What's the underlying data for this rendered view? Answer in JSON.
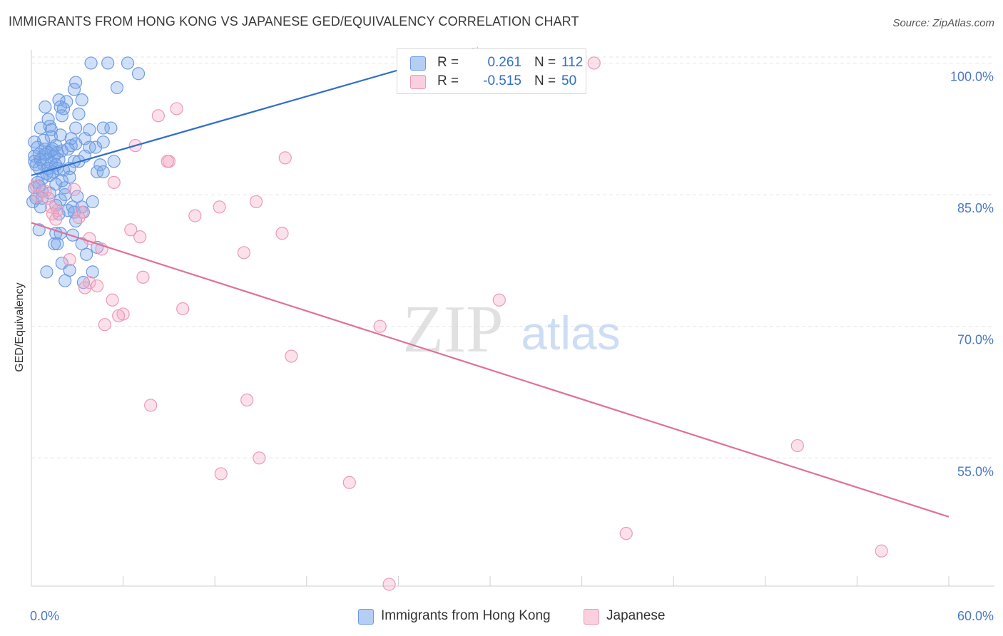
{
  "title": "IMMIGRANTS FROM HONG KONG VS JAPANESE GED/EQUIVALENCY CORRELATION CHART",
  "source": "Source: ZipAtlas.com",
  "watermark": {
    "zip": "ZIP",
    "atlas": "atlas"
  },
  "colors": {
    "blue": "#2f6fc9",
    "blue_fill": "rgba(120,165,235,0.35)",
    "pink": "#e0709a",
    "pink_fill": "rgba(245,170,195,0.35)",
    "grid": "#e6e6e6",
    "tick_label": "#4a78c2"
  },
  "legend": {
    "rows": [
      {
        "r_label": "R =",
        "r_value": "0.261",
        "n_label": "N =",
        "n_value": "112"
      },
      {
        "r_label": "R =",
        "r_value": "-0.515",
        "n_label": "N =",
        "n_value": "50"
      }
    ]
  },
  "chart_data": {
    "type": "scatter",
    "title": "IMMIGRANTS FROM HONG KONG VS JAPANESE GED/EQUIVALENCY CORRELATION CHART",
    "xlabel": "",
    "ylabel": "GED/Equivalency",
    "xlim": [
      0,
      60
    ],
    "ylim": [
      40.4,
      101.5
    ],
    "x_tick_labels": [
      "0.0%",
      "60.0%"
    ],
    "y_ticks": [
      55,
      70,
      85,
      100
    ],
    "y_tick_labels": [
      "55.0%",
      "70.0%",
      "85.0%",
      "100.0%"
    ],
    "grid": true,
    "legend_position": "bottom",
    "series": [
      {
        "name": "Immigrants from Hong Kong",
        "R": 0.261,
        "N": 112,
        "trend": {
          "x": [
            0,
            26.0
          ],
          "y": [
            87.2,
            100.2
          ]
        },
        "points": [
          [
            3.9,
            100.0
          ],
          [
            5.0,
            100.0
          ],
          [
            6.3,
            100.0
          ],
          [
            7.0,
            98.8
          ],
          [
            2.9,
            97.8
          ],
          [
            5.6,
            97.2
          ],
          [
            2.8,
            97.0
          ],
          [
            3.3,
            95.8
          ],
          [
            1.8,
            95.8
          ],
          [
            2.3,
            95.6
          ],
          [
            0.9,
            95.0
          ],
          [
            1.9,
            95.0
          ],
          [
            2.1,
            94.8
          ],
          [
            3.1,
            94.2
          ],
          [
            2.0,
            94.0
          ],
          [
            1.1,
            93.6
          ],
          [
            1.2,
            92.8
          ],
          [
            0.6,
            92.6
          ],
          [
            2.9,
            92.6
          ],
          [
            4.7,
            92.6
          ],
          [
            5.2,
            92.6
          ],
          [
            1.3,
            92.4
          ],
          [
            3.8,
            92.4
          ],
          [
            1.9,
            91.8
          ],
          [
            1.3,
            91.6
          ],
          [
            2.6,
            91.4
          ],
          [
            3.5,
            91.4
          ],
          [
            0.8,
            91.2
          ],
          [
            0.2,
            91.0
          ],
          [
            4.7,
            91.0
          ],
          [
            2.9,
            90.8
          ],
          [
            1.6,
            90.6
          ],
          [
            2.6,
            90.6
          ],
          [
            0.4,
            90.4
          ],
          [
            3.8,
            90.4
          ],
          [
            4.2,
            90.4
          ],
          [
            0.9,
            90.2
          ],
          [
            1.3,
            90.0
          ],
          [
            1.4,
            90.2
          ],
          [
            2.0,
            90.0
          ],
          [
            1.1,
            89.8
          ],
          [
            0.5,
            89.6
          ],
          [
            0.2,
            89.4
          ],
          [
            1.5,
            89.4
          ],
          [
            3.5,
            89.4
          ],
          [
            0.6,
            89.0
          ],
          [
            1.0,
            89.0
          ],
          [
            1.8,
            89.0
          ],
          [
            0.2,
            88.8
          ],
          [
            2.8,
            88.8
          ],
          [
            3.1,
            88.8
          ],
          [
            5.4,
            88.8
          ],
          [
            1.3,
            88.6
          ],
          [
            0.3,
            88.4
          ],
          [
            0.8,
            88.4
          ],
          [
            1.6,
            88.4
          ],
          [
            0.5,
            88.0
          ],
          [
            1.1,
            88.0
          ],
          [
            1.7,
            88.0
          ],
          [
            2.5,
            88.0
          ],
          [
            4.5,
            88.4
          ],
          [
            4.3,
            87.6
          ],
          [
            1.4,
            87.6
          ],
          [
            2.1,
            87.8
          ],
          [
            1.2,
            87.2
          ],
          [
            4.7,
            87.6
          ],
          [
            2.5,
            87.0
          ],
          [
            0.7,
            86.8
          ],
          [
            0.4,
            86.4
          ],
          [
            1.6,
            86.2
          ],
          [
            2.2,
            85.8
          ],
          [
            0.2,
            85.8
          ],
          [
            0.7,
            85.4
          ],
          [
            1.2,
            85.2
          ],
          [
            2.2,
            85.0
          ],
          [
            0.3,
            84.6
          ],
          [
            0.7,
            84.6
          ],
          [
            1.9,
            84.4
          ],
          [
            0.1,
            84.2
          ],
          [
            4.0,
            84.2
          ],
          [
            1.6,
            83.8
          ],
          [
            2.7,
            83.6
          ],
          [
            3.3,
            83.6
          ],
          [
            0.6,
            83.6
          ],
          [
            2.4,
            83.2
          ],
          [
            2.8,
            83.0
          ],
          [
            3.4,
            83.0
          ],
          [
            2.9,
            82.0
          ],
          [
            0.5,
            81.0
          ],
          [
            1.9,
            80.6
          ],
          [
            1.6,
            80.6
          ],
          [
            2.7,
            80.4
          ],
          [
            1.5,
            79.4
          ],
          [
            1.7,
            79.4
          ],
          [
            3.3,
            79.4
          ],
          [
            4.3,
            79.0
          ],
          [
            3.6,
            78.2
          ],
          [
            2.0,
            77.2
          ],
          [
            2.5,
            76.4
          ],
          [
            1.0,
            76.2
          ],
          [
            4.0,
            76.2
          ],
          [
            2.2,
            75.2
          ],
          [
            3.4,
            75.0
          ],
          [
            0.9,
            89.6
          ],
          [
            1.7,
            89.8
          ],
          [
            2.4,
            90.2
          ],
          [
            1.0,
            87.4
          ],
          [
            2.0,
            86.6
          ],
          [
            0.5,
            86.0
          ],
          [
            3.0,
            84.8
          ],
          [
            1.8,
            82.8
          ]
        ]
      },
      {
        "name": "Japanese",
        "R": -0.515,
        "N": 50,
        "trend": {
          "x": [
            0,
            60
          ],
          "y": [
            81.8,
            48.3
          ]
        },
        "points": [
          [
            36.8,
            100.0
          ],
          [
            9.5,
            94.8
          ],
          [
            8.3,
            94.0
          ],
          [
            6.8,
            90.6
          ],
          [
            16.6,
            89.2
          ],
          [
            9.0,
            88.8
          ],
          [
            8.9,
            88.8
          ],
          [
            5.4,
            86.4
          ],
          [
            0.3,
            86.0
          ],
          [
            0.9,
            85.4
          ],
          [
            2.8,
            85.6
          ],
          [
            0.4,
            84.8
          ],
          [
            1.1,
            84.6
          ],
          [
            14.7,
            84.2
          ],
          [
            1.3,
            83.6
          ],
          [
            12.3,
            83.6
          ],
          [
            1.7,
            83.2
          ],
          [
            3.3,
            83.0
          ],
          [
            1.4,
            82.8
          ],
          [
            10.7,
            82.6
          ],
          [
            3.1,
            82.4
          ],
          [
            1.6,
            82.2
          ],
          [
            6.5,
            81.0
          ],
          [
            16.4,
            80.6
          ],
          [
            7.1,
            80.2
          ],
          [
            3.8,
            80.0
          ],
          [
            4.6,
            78.8
          ],
          [
            13.9,
            78.4
          ],
          [
            2.5,
            77.6
          ],
          [
            7.3,
            75.6
          ],
          [
            3.8,
            75.0
          ],
          [
            4.3,
            74.6
          ],
          [
            3.5,
            74.4
          ],
          [
            5.3,
            73.0
          ],
          [
            30.6,
            73.0
          ],
          [
            9.9,
            72.0
          ],
          [
            6.0,
            71.4
          ],
          [
            5.7,
            71.2
          ],
          [
            4.8,
            70.2
          ],
          [
            22.8,
            70.0
          ],
          [
            17.0,
            66.6
          ],
          [
            7.8,
            61.0
          ],
          [
            14.1,
            61.6
          ],
          [
            50.1,
            56.4
          ],
          [
            14.9,
            55.0
          ],
          [
            12.4,
            53.2
          ],
          [
            20.8,
            52.2
          ],
          [
            38.9,
            46.4
          ],
          [
            55.6,
            44.4
          ],
          [
            23.4,
            40.6
          ]
        ]
      }
    ]
  },
  "bottom_legend": [
    {
      "label": "Immigrants from Hong Kong"
    },
    {
      "label": "Japanese"
    }
  ]
}
